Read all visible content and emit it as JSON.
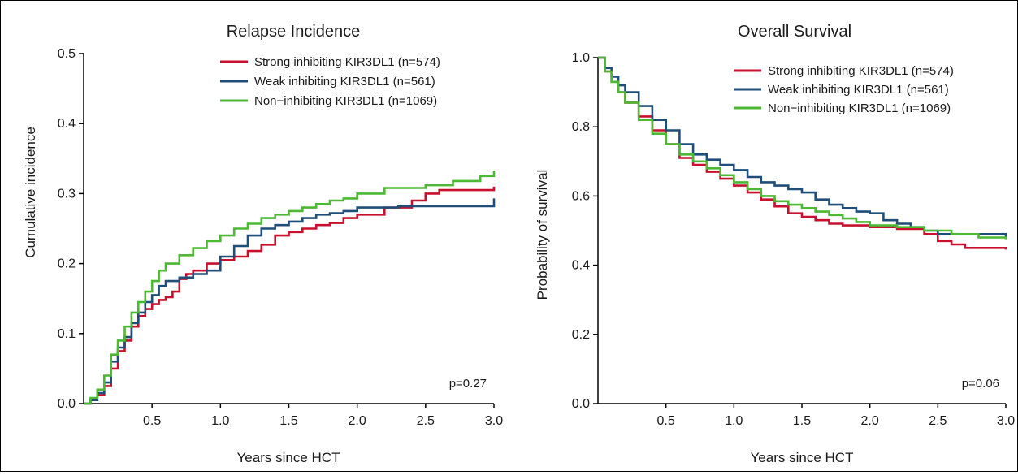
{
  "colors": {
    "strong": "#c8102e",
    "weak": "#1f4e79",
    "non": "#4cb833",
    "axis": "#000000"
  },
  "chart_data": [
    {
      "type": "line",
      "title": "Relapse Incidence",
      "xlabel": "Years since HCT",
      "ylabel": "Cumulative incidence",
      "xlim": [
        0,
        3.0
      ],
      "ylim": [
        0,
        0.5
      ],
      "xticks": [
        0.5,
        1.0,
        1.5,
        2.0,
        2.5,
        3.0
      ],
      "xtick_labels": [
        "0.5",
        "1.0",
        "1.5",
        "2.0",
        "2.5",
        "3.0"
      ],
      "yticks": [
        0,
        0.1,
        0.2,
        0.3,
        0.4,
        0.5
      ],
      "ytick_labels": [
        "0.0",
        "0.1",
        "0.2",
        "0.3",
        "0.4",
        "0.5"
      ],
      "legend_position": "top-right",
      "annotation": "p=0.27",
      "series": [
        {
          "name": "Strong inhibiting KIR3DL1 (n=574)",
          "color_key": "strong",
          "points": [
            [
              0,
              0
            ],
            [
              0.05,
              0.005
            ],
            [
              0.1,
              0.012
            ],
            [
              0.15,
              0.025
            ],
            [
              0.2,
              0.05
            ],
            [
              0.25,
              0.075
            ],
            [
              0.3,
              0.09
            ],
            [
              0.35,
              0.11
            ],
            [
              0.4,
              0.125
            ],
            [
              0.45,
              0.135
            ],
            [
              0.5,
              0.142
            ],
            [
              0.55,
              0.148
            ],
            [
              0.6,
              0.152
            ],
            [
              0.65,
              0.16
            ],
            [
              0.7,
              0.178
            ],
            [
              0.75,
              0.185
            ],
            [
              0.8,
              0.19
            ],
            [
              0.9,
              0.2
            ],
            [
              1.0,
              0.205
            ],
            [
              1.1,
              0.21
            ],
            [
              1.2,
              0.218
            ],
            [
              1.3,
              0.227
            ],
            [
              1.4,
              0.24
            ],
            [
              1.5,
              0.245
            ],
            [
              1.6,
              0.25
            ],
            [
              1.7,
              0.255
            ],
            [
              1.8,
              0.258
            ],
            [
              1.9,
              0.265
            ],
            [
              2.0,
              0.27
            ],
            [
              2.2,
              0.28
            ],
            [
              2.4,
              0.29
            ],
            [
              2.5,
              0.3
            ],
            [
              2.6,
              0.305
            ],
            [
              3.0,
              0.31
            ]
          ]
        },
        {
          "name": "Weak inhibiting KIR3DL1 (n=561)",
          "color_key": "weak",
          "points": [
            [
              0,
              0
            ],
            [
              0.05,
              0.005
            ],
            [
              0.1,
              0.015
            ],
            [
              0.15,
              0.03
            ],
            [
              0.2,
              0.06
            ],
            [
              0.25,
              0.08
            ],
            [
              0.3,
              0.095
            ],
            [
              0.35,
              0.115
            ],
            [
              0.4,
              0.13
            ],
            [
              0.45,
              0.145
            ],
            [
              0.5,
              0.155
            ],
            [
              0.55,
              0.168
            ],
            [
              0.6,
              0.175
            ],
            [
              0.7,
              0.18
            ],
            [
              0.8,
              0.185
            ],
            [
              0.9,
              0.19
            ],
            [
              1.0,
              0.21
            ],
            [
              1.1,
              0.225
            ],
            [
              1.2,
              0.24
            ],
            [
              1.3,
              0.25
            ],
            [
              1.4,
              0.255
            ],
            [
              1.5,
              0.26
            ],
            [
              1.6,
              0.265
            ],
            [
              1.7,
              0.27
            ],
            [
              1.8,
              0.272
            ],
            [
              1.9,
              0.275
            ],
            [
              2.0,
              0.28
            ],
            [
              2.3,
              0.282
            ],
            [
              2.5,
              0.282
            ],
            [
              2.9,
              0.282
            ],
            [
              3.0,
              0.293
            ]
          ]
        },
        {
          "name": "Non−inhibiting KIR3DL1 (n=1069)",
          "color_key": "non",
          "points": [
            [
              0,
              0
            ],
            [
              0.05,
              0.008
            ],
            [
              0.1,
              0.02
            ],
            [
              0.15,
              0.04
            ],
            [
              0.2,
              0.07
            ],
            [
              0.25,
              0.09
            ],
            [
              0.3,
              0.11
            ],
            [
              0.35,
              0.13
            ],
            [
              0.4,
              0.145
            ],
            [
              0.45,
              0.16
            ],
            [
              0.5,
              0.175
            ],
            [
              0.55,
              0.19
            ],
            [
              0.6,
              0.2
            ],
            [
              0.7,
              0.212
            ],
            [
              0.8,
              0.222
            ],
            [
              0.9,
              0.232
            ],
            [
              1.0,
              0.24
            ],
            [
              1.1,
              0.25
            ],
            [
              1.2,
              0.257
            ],
            [
              1.3,
              0.265
            ],
            [
              1.4,
              0.27
            ],
            [
              1.5,
              0.275
            ],
            [
              1.6,
              0.28
            ],
            [
              1.7,
              0.285
            ],
            [
              1.8,
              0.29
            ],
            [
              1.9,
              0.293
            ],
            [
              2.0,
              0.3
            ],
            [
              2.2,
              0.308
            ],
            [
              2.5,
              0.312
            ],
            [
              2.7,
              0.318
            ],
            [
              2.9,
              0.325
            ],
            [
              3.0,
              0.333
            ]
          ]
        }
      ]
    },
    {
      "type": "line",
      "title": "Overall Survival",
      "xlabel": "Years since HCT",
      "ylabel": "Probability of survival",
      "xlim": [
        0,
        3.0
      ],
      "ylim": [
        0,
        1.0
      ],
      "xticks": [
        0.5,
        1.0,
        1.5,
        2.0,
        2.5,
        3.0
      ],
      "xtick_labels": [
        "0.5",
        "1.0",
        "1.5",
        "2.0",
        "2.5",
        "3.0"
      ],
      "yticks": [
        0,
        0.2,
        0.4,
        0.6,
        0.8,
        1.0
      ],
      "ytick_labels": [
        "0.0",
        "0.2",
        "0.4",
        "0.6",
        "0.8",
        "1.0"
      ],
      "legend_position": "top-right",
      "annotation": "p=0.06",
      "series": [
        {
          "name": "Strong inhibiting KIR3DL1 (n=574)",
          "color_key": "strong",
          "points": [
            [
              0,
              1.0
            ],
            [
              0.05,
              0.96
            ],
            [
              0.1,
              0.93
            ],
            [
              0.15,
              0.9
            ],
            [
              0.2,
              0.87
            ],
            [
              0.3,
              0.83
            ],
            [
              0.4,
              0.79
            ],
            [
              0.5,
              0.75
            ],
            [
              0.6,
              0.71
            ],
            [
              0.7,
              0.69
            ],
            [
              0.8,
              0.67
            ],
            [
              0.9,
              0.65
            ],
            [
              1.0,
              0.63
            ],
            [
              1.1,
              0.61
            ],
            [
              1.2,
              0.59
            ],
            [
              1.3,
              0.57
            ],
            [
              1.4,
              0.55
            ],
            [
              1.5,
              0.54
            ],
            [
              1.6,
              0.53
            ],
            [
              1.7,
              0.52
            ],
            [
              1.8,
              0.515
            ],
            [
              2.0,
              0.51
            ],
            [
              2.2,
              0.505
            ],
            [
              2.4,
              0.49
            ],
            [
              2.5,
              0.47
            ],
            [
              2.6,
              0.46
            ],
            [
              2.7,
              0.45
            ],
            [
              3.0,
              0.445
            ]
          ]
        },
        {
          "name": "Weak inhibiting KIR3DL1 (n=561)",
          "color_key": "weak",
          "points": [
            [
              0,
              1.0
            ],
            [
              0.05,
              0.97
            ],
            [
              0.1,
              0.945
            ],
            [
              0.15,
              0.92
            ],
            [
              0.2,
              0.9
            ],
            [
              0.3,
              0.86
            ],
            [
              0.4,
              0.82
            ],
            [
              0.5,
              0.79
            ],
            [
              0.6,
              0.75
            ],
            [
              0.7,
              0.72
            ],
            [
              0.8,
              0.705
            ],
            [
              0.9,
              0.69
            ],
            [
              1.0,
              0.675
            ],
            [
              1.1,
              0.655
            ],
            [
              1.2,
              0.64
            ],
            [
              1.3,
              0.63
            ],
            [
              1.4,
              0.62
            ],
            [
              1.5,
              0.61
            ],
            [
              1.6,
              0.59
            ],
            [
              1.7,
              0.575
            ],
            [
              1.8,
              0.565
            ],
            [
              1.9,
              0.555
            ],
            [
              2.0,
              0.55
            ],
            [
              2.1,
              0.53
            ],
            [
              2.2,
              0.52
            ],
            [
              2.3,
              0.51
            ],
            [
              2.4,
              0.5
            ],
            [
              2.5,
              0.49
            ],
            [
              2.8,
              0.49
            ],
            [
              3.0,
              0.48
            ]
          ]
        },
        {
          "name": "Non−inhibiting KIR3DL1 (n=1069)",
          "color_key": "non",
          "points": [
            [
              0,
              1.0
            ],
            [
              0.05,
              0.96
            ],
            [
              0.1,
              0.93
            ],
            [
              0.15,
              0.9
            ],
            [
              0.2,
              0.87
            ],
            [
              0.3,
              0.82
            ],
            [
              0.4,
              0.78
            ],
            [
              0.5,
              0.75
            ],
            [
              0.6,
              0.72
            ],
            [
              0.7,
              0.7
            ],
            [
              0.8,
              0.68
            ],
            [
              0.9,
              0.66
            ],
            [
              1.0,
              0.64
            ],
            [
              1.1,
              0.62
            ],
            [
              1.2,
              0.6
            ],
            [
              1.3,
              0.585
            ],
            [
              1.4,
              0.575
            ],
            [
              1.5,
              0.565
            ],
            [
              1.6,
              0.555
            ],
            [
              1.7,
              0.545
            ],
            [
              1.8,
              0.535
            ],
            [
              1.9,
              0.525
            ],
            [
              2.0,
              0.515
            ],
            [
              2.2,
              0.51
            ],
            [
              2.4,
              0.5
            ],
            [
              2.6,
              0.49
            ],
            [
              2.8,
              0.48
            ],
            [
              3.0,
              0.475
            ]
          ]
        }
      ]
    }
  ]
}
